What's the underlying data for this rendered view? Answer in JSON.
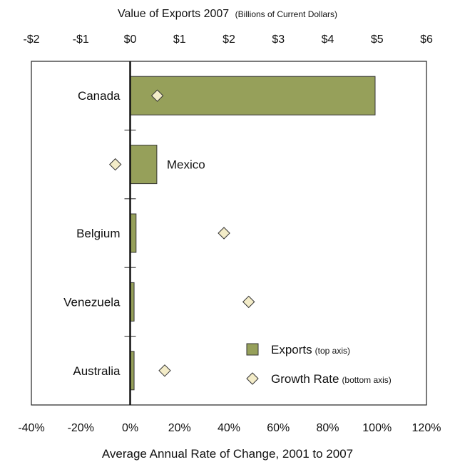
{
  "chart_data": {
    "type": "bar",
    "top_title": "Value of Exports 2007",
    "top_title_note": "(Billions of Current Dollars)",
    "bottom_title": "Average Annual Rate of Change, 2001 to 2007",
    "categories": [
      "Canada",
      "Mexico",
      "Belgium",
      "Venezuela",
      "Australia"
    ],
    "series": [
      {
        "name": "Exports",
        "axis": "top",
        "values": [
          4.96,
          0.54,
          0.12,
          0.08,
          0.08
        ],
        "color": "#96a05a"
      },
      {
        "name": "Growth Rate",
        "axis": "bottom",
        "values": [
          11,
          -6,
          38,
          48,
          14
        ],
        "color": "#f3ecc8"
      }
    ],
    "top_axis": {
      "min": -2,
      "max": 6,
      "ticks": [
        "-$2",
        "-$1",
        "$0",
        "$1",
        "$2",
        "$3",
        "$4",
        "$5",
        "$6"
      ]
    },
    "bottom_axis": {
      "min": -40,
      "max": 120,
      "ticks": [
        "-40%",
        "-20%",
        "0%",
        "20%",
        "40%",
        "60%",
        "80%",
        "100%",
        "120%"
      ]
    },
    "legend": {
      "placement": "bottom-right",
      "items": [
        {
          "label": "Exports",
          "note": "(top axis)",
          "marker": "square"
        },
        {
          "label": "Growth Rate",
          "note": "(bottom axis)",
          "marker": "diamond"
        }
      ]
    },
    "label_placement": {
      "Mexico": "right-of-bar"
    }
  }
}
